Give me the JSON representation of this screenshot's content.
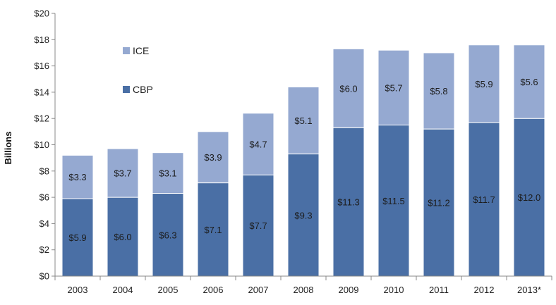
{
  "chart_data": {
    "type": "bar",
    "stacked": true,
    "categories": [
      "2003",
      "2004",
      "2005",
      "2006",
      "2007",
      "2008",
      "2009",
      "2010",
      "2011",
      "2012",
      "2013*"
    ],
    "series": [
      {
        "name": "CBP",
        "color": "#4a6fa5",
        "values": [
          5.9,
          6.0,
          6.3,
          7.1,
          7.7,
          9.3,
          11.3,
          11.5,
          11.2,
          11.7,
          12.0
        ],
        "labels": [
          "$5.9",
          "$6.0",
          "$6.3",
          "$7.1",
          "$7.7",
          "$9.3",
          "$11.3",
          "$11.5",
          "$11.2",
          "$11.7",
          "$12.0"
        ]
      },
      {
        "name": "ICE",
        "color": "#95a9d1",
        "values": [
          3.3,
          3.7,
          3.1,
          3.9,
          4.7,
          5.1,
          6.0,
          5.7,
          5.8,
          5.9,
          5.6
        ],
        "labels": [
          "$3.3",
          "$3.7",
          "$3.1",
          "$3.9",
          "$4.7",
          "$5.1",
          "$6.0",
          "$5.7",
          "$5.8",
          "$5.9",
          "$5.6"
        ]
      }
    ],
    "ylabel": "Billions",
    "xlabel": "",
    "ylim": [
      0,
      20
    ],
    "yticks": [
      0,
      2,
      4,
      6,
      8,
      10,
      12,
      14,
      16,
      18,
      20
    ],
    "ytick_labels": [
      "$0",
      "$2",
      "$4",
      "$6",
      "$8",
      "$10",
      "$12",
      "$14",
      "$16",
      "$18",
      "$20"
    ],
    "grid": false,
    "legend": {
      "placement": "top-left",
      "order": [
        "ICE",
        "CBP"
      ]
    }
  }
}
